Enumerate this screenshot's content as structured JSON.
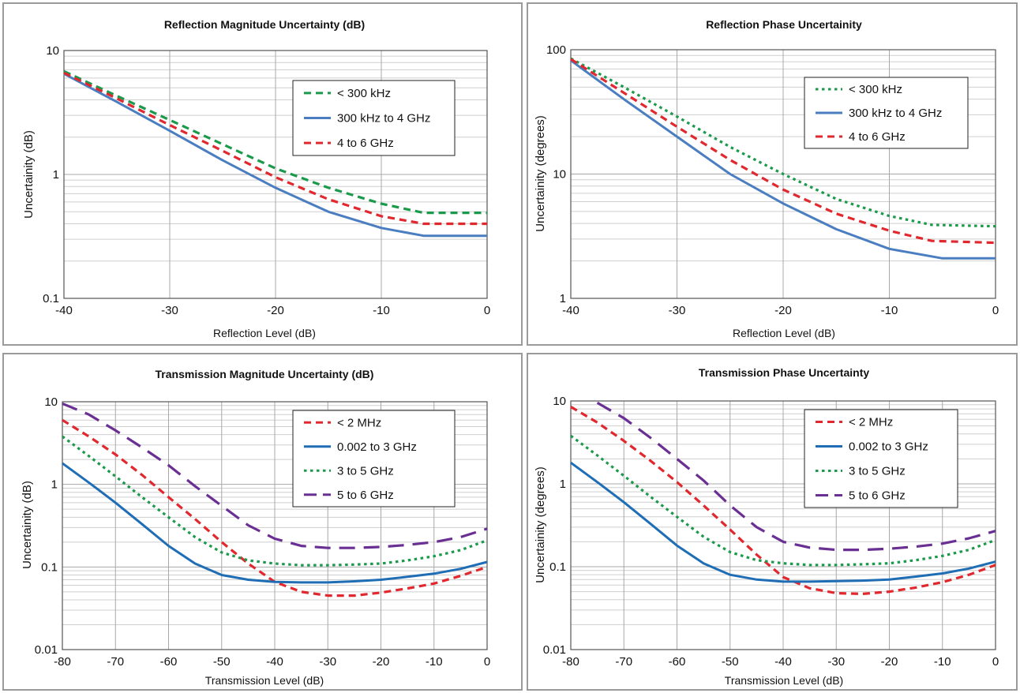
{
  "chart_data": [
    {
      "type": "line",
      "title": "Reflection Magnitude Uncertainty (dB)",
      "xlabel": "Reflection Level (dB)",
      "ylabel": "Uncertainity (dB)",
      "xlim": [
        -40,
        0
      ],
      "ylim": [
        0.1,
        10
      ],
      "yscale": "log",
      "grid": true,
      "legend_position": "top-right",
      "x_ticks": [
        "-40",
        "-30",
        "-20",
        "-10",
        "0"
      ],
      "y_ticks": [
        "0.1",
        "1",
        "10"
      ],
      "series": [
        {
          "name": "< 300 kHz",
          "color": "#1a9a4a",
          "dash": "dash",
          "x": [
            -40,
            -35,
            -30,
            -25,
            -20,
            -15,
            -10,
            -6,
            0
          ],
          "values": [
            6.8,
            4.3,
            2.75,
            1.75,
            1.12,
            0.78,
            0.58,
            0.49,
            0.49
          ]
        },
        {
          "name": "300 kHz to 4 GHz",
          "color": "#4a7ec0",
          "dash": "solid",
          "x": [
            -40,
            -35,
            -30,
            -25,
            -20,
            -15,
            -10,
            -6,
            0
          ],
          "values": [
            6.5,
            3.85,
            2.25,
            1.3,
            0.78,
            0.5,
            0.37,
            0.32,
            0.32
          ]
        },
        {
          "name": "4 to 6 GHz",
          "color": "#e0282e",
          "dash": "dash",
          "x": [
            -40,
            -35,
            -30,
            -25,
            -20,
            -15,
            -10,
            -6,
            0
          ],
          "values": [
            6.6,
            4.1,
            2.5,
            1.55,
            0.95,
            0.63,
            0.46,
            0.4,
            0.4
          ]
        }
      ]
    },
    {
      "type": "line",
      "title": "Reflection Phase Uncertainity",
      "xlabel": "Reflection Level (dB)",
      "ylabel": "Uncertainity (degrees)",
      "xlim": [
        -40,
        0
      ],
      "ylim": [
        1,
        100
      ],
      "yscale": "log",
      "grid": true,
      "legend_position": "top-right",
      "x_ticks": [
        "-40",
        "-30",
        "-20",
        "-10",
        "0"
      ],
      "y_ticks": [
        "1",
        "10",
        "100"
      ],
      "series": [
        {
          "name": "< 300 kHz",
          "color": "#1a9a4a",
          "dash": "dot",
          "x": [
            -40,
            -35,
            -30,
            -25,
            -20,
            -15,
            -10,
            -6,
            0
          ],
          "values": [
            85,
            50,
            29,
            16.5,
            10,
            6.3,
            4.6,
            3.9,
            3.8
          ]
        },
        {
          "name": "300 kHz to 4 GHz",
          "color": "#4a7ec0",
          "dash": "solid",
          "x": [
            -40,
            -35,
            -30,
            -25,
            -20,
            -15,
            -10,
            -5,
            0
          ],
          "values": [
            82,
            40,
            20,
            10,
            5.8,
            3.6,
            2.5,
            2.1,
            2.1
          ]
        },
        {
          "name": "4 to 6 GHz",
          "color": "#e0282e",
          "dash": "dash",
          "x": [
            -40,
            -35,
            -30,
            -25,
            -20,
            -15,
            -10,
            -6,
            0
          ],
          "values": [
            84,
            45,
            24,
            13,
            7.5,
            4.8,
            3.5,
            2.9,
            2.8
          ]
        }
      ]
    },
    {
      "type": "line",
      "title": "Transmission Magnitude Uncertainty (dB)",
      "xlabel": "Transmission Level (dB)",
      "ylabel": "Uncertainity (dB)",
      "xlim": [
        -80,
        0
      ],
      "ylim": [
        0.01,
        10
      ],
      "yscale": "log",
      "grid": true,
      "legend_position": "top-right",
      "x_ticks": [
        "-80",
        "-70",
        "-60",
        "-50",
        "-40",
        "-30",
        "-20",
        "-10",
        "0"
      ],
      "y_ticks": [
        "0.01",
        "0.1",
        "1",
        "10"
      ],
      "series": [
        {
          "name": "< 2 MHz",
          "color": "#e0282e",
          "dash": "dash",
          "x": [
            -80,
            -75,
            -70,
            -65,
            -60,
            -55,
            -50,
            -45,
            -40,
            -35,
            -30,
            -25,
            -20,
            -15,
            -10,
            -5,
            0
          ],
          "values": [
            6,
            3.8,
            2.3,
            1.3,
            0.7,
            0.38,
            0.2,
            0.11,
            0.066,
            0.05,
            0.045,
            0.045,
            0.049,
            0.055,
            0.063,
            0.078,
            0.1
          ]
        },
        {
          "name": "0.002 to 3 GHz",
          "color": "#1f6eb5",
          "dash": "solid",
          "x": [
            -80,
            -75,
            -70,
            -65,
            -60,
            -55,
            -50,
            -45,
            -40,
            -35,
            -30,
            -25,
            -20,
            -15,
            -10,
            -5,
            0
          ],
          "values": [
            1.8,
            1.05,
            0.6,
            0.33,
            0.18,
            0.11,
            0.08,
            0.07,
            0.066,
            0.065,
            0.065,
            0.067,
            0.07,
            0.076,
            0.083,
            0.095,
            0.115
          ]
        },
        {
          "name": "3 to 5 GHz",
          "color": "#1a9a4a",
          "dash": "dot",
          "x": [
            -80,
            -75,
            -70,
            -65,
            -60,
            -55,
            -50,
            -45,
            -40,
            -35,
            -30,
            -25,
            -20,
            -15,
            -10,
            -5,
            0
          ],
          "values": [
            3.8,
            2.2,
            1.25,
            0.7,
            0.4,
            0.23,
            0.15,
            0.12,
            0.11,
            0.105,
            0.105,
            0.107,
            0.11,
            0.12,
            0.135,
            0.16,
            0.21
          ]
        },
        {
          "name": "5 to 6 GHz",
          "color": "#6a2f92",
          "dash": "longdash",
          "x": [
            -80,
            -75,
            -70,
            -65,
            -60,
            -55,
            -50,
            -45,
            -40,
            -35,
            -30,
            -25,
            -20,
            -15,
            -10,
            -5,
            0
          ],
          "values": [
            9.5,
            7,
            4.5,
            2.8,
            1.7,
            0.95,
            0.55,
            0.32,
            0.22,
            0.18,
            0.17,
            0.17,
            0.175,
            0.185,
            0.2,
            0.23,
            0.29
          ]
        }
      ]
    },
    {
      "type": "line",
      "title": "Transmission Phase Uncertainty",
      "xlabel": "Transmission Level (dB)",
      "ylabel": "Uncertainity (degrees)",
      "xlim": [
        -80,
        0
      ],
      "ylim": [
        0.01,
        10
      ],
      "yscale": "log",
      "grid": true,
      "legend_position": "top-right",
      "x_ticks": [
        "-80",
        "-70",
        "-60",
        "-50",
        "-40",
        "-30",
        "-20",
        "-10",
        "0"
      ],
      "y_ticks": [
        "0.01",
        "0.1",
        "1",
        "10"
      ],
      "series": [
        {
          "name": "< 2 MHz",
          "color": "#e0282e",
          "dash": "dash",
          "x": [
            -80,
            -75,
            -70,
            -65,
            -60,
            -55,
            -50,
            -45,
            -40,
            -35,
            -30,
            -25,
            -20,
            -15,
            -10,
            -5,
            0
          ],
          "values": [
            8.5,
            5.5,
            3.3,
            1.9,
            1.05,
            0.55,
            0.28,
            0.14,
            0.075,
            0.055,
            0.048,
            0.047,
            0.05,
            0.056,
            0.065,
            0.08,
            0.105
          ]
        },
        {
          "name": "0.002 to 3 GHz",
          "color": "#1f6eb5",
          "dash": "solid",
          "x": [
            -80,
            -75,
            -70,
            -65,
            -60,
            -55,
            -50,
            -45,
            -40,
            -35,
            -30,
            -25,
            -20,
            -15,
            -10,
            -5,
            0
          ],
          "values": [
            1.8,
            1.05,
            0.6,
            0.33,
            0.18,
            0.11,
            0.08,
            0.07,
            0.066,
            0.066,
            0.067,
            0.068,
            0.07,
            0.076,
            0.083,
            0.095,
            0.115
          ]
        },
        {
          "name": "3 to 5 GHz",
          "color": "#1a9a4a",
          "dash": "dot",
          "x": [
            -80,
            -75,
            -70,
            -65,
            -60,
            -55,
            -50,
            -45,
            -40,
            -35,
            -30,
            -25,
            -20,
            -15,
            -10,
            -5,
            0
          ],
          "values": [
            3.8,
            2.2,
            1.25,
            0.7,
            0.4,
            0.23,
            0.15,
            0.12,
            0.11,
            0.105,
            0.105,
            0.107,
            0.11,
            0.12,
            0.135,
            0.16,
            0.21
          ]
        },
        {
          "name": "5 to 6 GHz",
          "color": "#6a2f92",
          "dash": "longdash",
          "x": [
            -75,
            -70,
            -65,
            -60,
            -55,
            -50,
            -45,
            -40,
            -35,
            -30,
            -25,
            -20,
            -15,
            -10,
            -5,
            0
          ],
          "values": [
            9.5,
            6.2,
            3.6,
            2.0,
            1.1,
            0.55,
            0.3,
            0.2,
            0.17,
            0.16,
            0.16,
            0.165,
            0.175,
            0.19,
            0.22,
            0.27
          ]
        }
      ]
    }
  ]
}
